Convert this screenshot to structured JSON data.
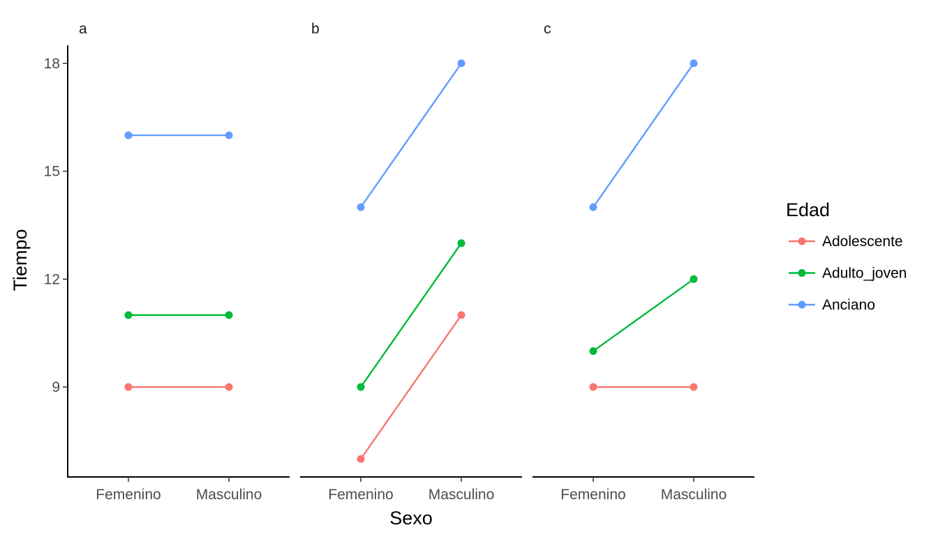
{
  "chart_data": {
    "type": "line",
    "xlabel": "Sexo",
    "ylabel": "Tiempo",
    "x_categories": [
      "Femenino",
      "Masculino"
    ],
    "ylim": [
      6.5,
      18.5
    ],
    "y_ticks": [
      9,
      12,
      15,
      18
    ],
    "legend": {
      "title": "Edad",
      "placement": "right",
      "items": [
        {
          "name": "Adolescente",
          "color": "#F8766D"
        },
        {
          "name": "Adulto_joven",
          "color": "#00BA38"
        },
        {
          "name": "Anciano",
          "color": "#619CFF"
        }
      ]
    },
    "panels": [
      {
        "label": "a",
        "series": [
          {
            "name": "Adolescente",
            "values": [
              9,
              9
            ]
          },
          {
            "name": "Adulto_joven",
            "values": [
              11,
              11
            ]
          },
          {
            "name": "Anciano",
            "values": [
              16,
              16
            ]
          }
        ]
      },
      {
        "label": "b",
        "series": [
          {
            "name": "Adolescente",
            "values": [
              7,
              11
            ]
          },
          {
            "name": "Adulto_joven",
            "values": [
              9,
              13
            ]
          },
          {
            "name": "Anciano",
            "values": [
              14,
              18
            ]
          }
        ]
      },
      {
        "label": "c",
        "series": [
          {
            "name": "Adolescente",
            "values": [
              9,
              9
            ]
          },
          {
            "name": "Adulto_joven",
            "values": [
              10,
              12
            ]
          },
          {
            "name": "Anciano",
            "values": [
              14,
              18
            ]
          }
        ]
      }
    ]
  }
}
